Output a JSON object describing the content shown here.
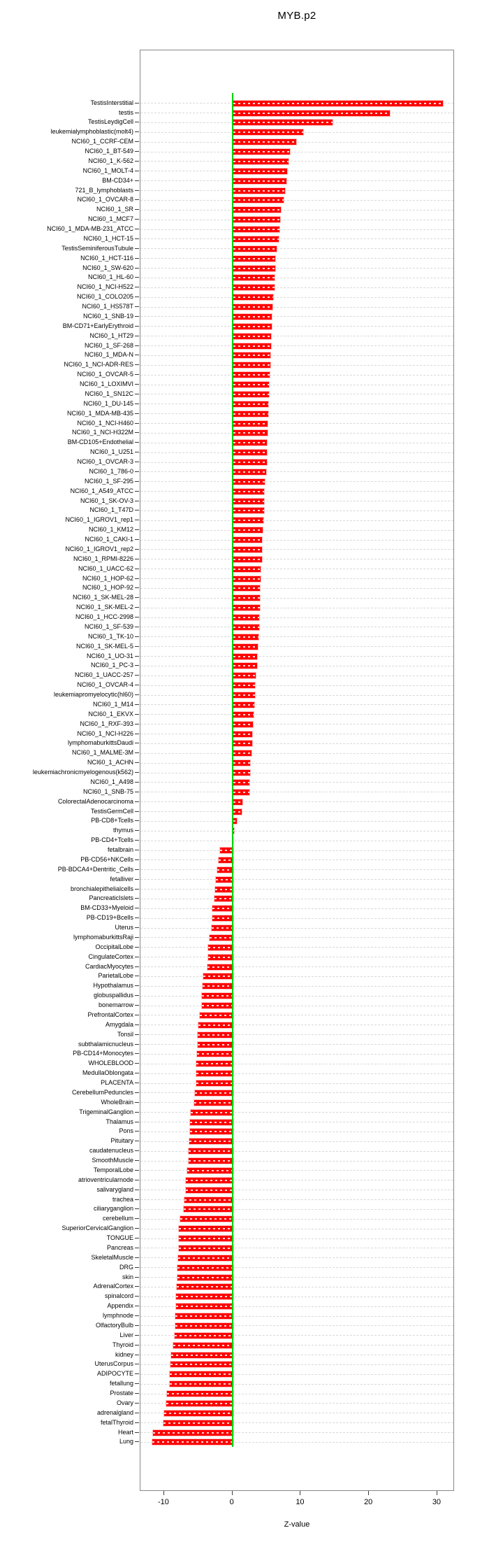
{
  "chart_data": {
    "type": "bar",
    "orientation": "horizontal",
    "title": "MYB.p2",
    "xlabel": "Z-value",
    "x_ticks": [
      -10,
      0,
      10,
      20,
      30
    ],
    "xlim": [
      -13.5,
      32.5
    ],
    "grid": "dashed-horizontal-per-row",
    "bar_color": "#ff0000",
    "zero_line_color": "#00d300",
    "axis_color": "#878787",
    "categories": [
      "TestisInterstitial",
      "testis",
      "TestisLeydigCell",
      "leukemialymphoblastic(molt4)",
      "NCI60_1_CCRF-CEM",
      "NCI60_1_BT-549",
      "NCI60_1_K-562",
      "NCI60_1_MOLT-4",
      "BM-CD34+",
      "721_B_lymphoblasts",
      "NCI60_1_OVCAR-8",
      "NCI60_1_SR",
      "NCI60_1_MCF7",
      "NCI60_1_MDA-MB-231_ATCC",
      "NCI60_1_HCT-15",
      "TestisSeminiferousTubule",
      "NCI60_1_HCT-116",
      "NCI60_1_SW-620",
      "NCI60_1_HL-60",
      "NCI60_1_NCI-H522",
      "NCI60_1_COLO205",
      "NCI60_1_HS578T",
      "NCI60_1_SNB-19",
      "BM-CD71+EarlyErythroid",
      "NCI60_1_HT29",
      "NCI60_1_SF-268",
      "NCI60_1_MDA-N",
      "NCI60_1_NCI-ADR-RES",
      "NCI60_1_OVCAR-5",
      "NCI60_1_LOXIMVI",
      "NCI60_1_SN12C",
      "NCI60_1_DU-145",
      "NCI60_1_MDA-MB-435",
      "NCI60_1_NCI-H460",
      "NCI60_1_NCI-H322M",
      "BM-CD105+Endothelial",
      "NCI60_1_U251",
      "NCI60_1_OVCAR-3",
      "NCI60_1_786-0",
      "NCI60_1_SF-295",
      "NCI60_1_A549_ATCC",
      "NCI60_1_SK-OV-3",
      "NCI60_1_T47D",
      "NCI60_1_IGROV1_rep1",
      "NCI60_1_KM12",
      "NCI60_1_CAKI-1",
      "NCI60_1_IGROV1_rep2",
      "NCI60_1_RPMI-8226",
      "NCI60_1_UACC-62",
      "NCI60_1_HOP-62",
      "NCI60_1_HOP-92",
      "NCI60_1_SK-MEL-28",
      "NCI60_1_SK-MEL-2",
      "NCI60_1_HCC-2998",
      "NCI60_1_SF-539",
      "NCI60_1_TK-10",
      "NCI60_1_SK-MEL-5",
      "NCI60_1_UO-31",
      "NCI60_1_PC-3",
      "NCI60_1_UACC-257",
      "NCI60_1_OVCAR-4",
      "leukemiapromyelocytic(hl60)",
      "NCI60_1_M14",
      "NCI60_1_EKVX",
      "NCI60_1_RXF-393",
      "NCI60_1_NCI-H226",
      "lymphomaburkittsDaudi",
      "NCI60_1_MALME-3M",
      "NCI60_1_ACHN",
      "leukemiachronicmyelogenous(k562)",
      "NCI60_1_A498",
      "NCI60_1_SNB-75",
      "ColorectalAdenocarcinoma",
      "TestisGermCell",
      "PB-CD8+Tcells",
      "thymus",
      "PB-CD4+Tcells",
      "fetalbrain",
      "PB-CD56+NKCells",
      "PB-BDCA4+Dentritic_Cells",
      "fetalliver",
      "bronchialepithelialcells",
      "PancreaticIslets",
      "BM-CD33+Myeloid",
      "PB-CD19+Bcells",
      "Uterus",
      "lymphomaburkittsRaji",
      "OccipitalLobe",
      "CingulateCortex",
      "CardiacMyocytes",
      "ParietalLobe",
      "Hypothalamus",
      "globuspallidus",
      "bonemarrow",
      "PrefrontalCortex",
      "Amygdala",
      "Tonsil",
      "subthalamicnucleus",
      "PB-CD14+Monocytes",
      "WHOLEBLOOD",
      "MedullaOblongata",
      "PLACENTA",
      "CerebellumPeduncles",
      "WholeBrain",
      "TrigeminalGanglion",
      "Thalamus",
      "Pons",
      "Pituitary",
      "caudatenucleus",
      "SmoothMuscle",
      "TemporalLobe",
      "atrioventricularnode",
      "salivarygland",
      "trachea",
      "ciliaryganglion",
      "cerebellum",
      "SuperiorCervicalGanglion",
      "TONGUE",
      "Pancreas",
      "SkeletalMuscle",
      "DRG",
      "skin",
      "AdrenalCortex",
      "spinalcord",
      "Appendix",
      "lymphnode",
      "OlfactoryBulb",
      "Liver",
      "Thyroid",
      "kidney",
      "UterusCorpus",
      "ADIPOCYTE",
      "fetallung",
      "Prostate",
      "Ovary",
      "adrenalgland",
      "fetalThyroid",
      "Heart",
      "Lung"
    ],
    "values": [
      30.7,
      22.9,
      14.6,
      10.3,
      9.2,
      8.3,
      8.1,
      7.9,
      7.8,
      7.6,
      7.4,
      7.0,
      6.9,
      6.8,
      6.7,
      6.4,
      6.2,
      6.2,
      6.1,
      6.1,
      5.9,
      5.8,
      5.7,
      5.7,
      5.6,
      5.6,
      5.5,
      5.5,
      5.4,
      5.3,
      5.2,
      5.1,
      5.1,
      5.0,
      5.0,
      4.9,
      4.9,
      4.9,
      4.8,
      4.6,
      4.5,
      4.5,
      4.5,
      4.4,
      4.3,
      4.2,
      4.2,
      4.2,
      4.0,
      4.0,
      3.9,
      3.9,
      3.9,
      3.8,
      3.8,
      3.7,
      3.6,
      3.5,
      3.5,
      3.3,
      3.2,
      3.2,
      3.1,
      3.0,
      2.9,
      2.8,
      2.8,
      2.7,
      2.5,
      2.5,
      2.4,
      2.4,
      1.4,
      1.3,
      0.5,
      0.1,
      -0.1,
      -1.9,
      -2.1,
      -2.3,
      -2.5,
      -2.6,
      -2.7,
      -3.0,
      -3.0,
      -3.1,
      -3.4,
      -3.7,
      -3.7,
      -3.8,
      -4.4,
      -4.5,
      -4.6,
      -4.6,
      -4.9,
      -5.1,
      -5.2,
      -5.2,
      -5.3,
      -5.4,
      -5.4,
      -5.4,
      -5.6,
      -5.7,
      -6.2,
      -6.3,
      -6.3,
      -6.4,
      -6.5,
      -6.5,
      -6.7,
      -6.9,
      -6.9,
      -7.1,
      -7.2,
      -7.7,
      -7.9,
      -7.9,
      -8.0,
      -8.1,
      -8.2,
      -8.2,
      -8.3,
      -8.4,
      -8.4,
      -8.5,
      -8.5,
      -8.6,
      -8.8,
      -9.1,
      -9.2,
      -9.3,
      -9.3,
      -9.7,
      -9.8,
      -10.1,
      -10.2,
      -11.7,
      -11.8
    ]
  }
}
